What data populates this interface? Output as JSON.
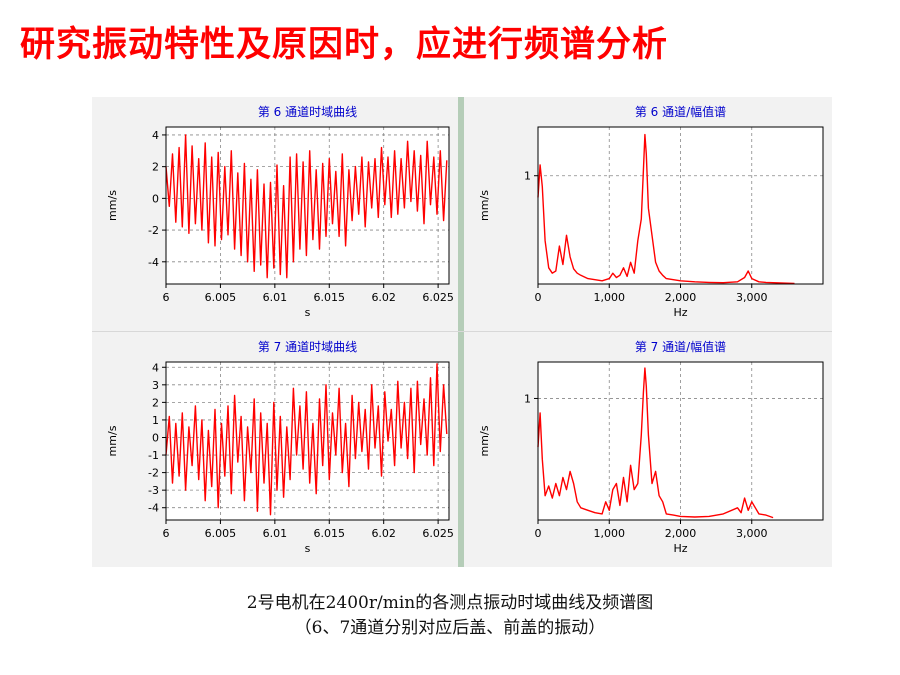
{
  "title": "研究振动特性及原因时，应进行频谱分析",
  "caption": {
    "line1": "2号电机在2400r/min的各测点振动时域曲线及频谱图",
    "line2": "（6、7通道分别对应后盖、前盖的振动）"
  },
  "colors": {
    "title": "#ff0000",
    "trace": "#ff0000",
    "panel_title": "#0000cc",
    "grid": "#888888"
  },
  "chart_data": [
    {
      "type": "line",
      "title": "第 6 通道时域曲线",
      "xlabel": "s",
      "ylabel": "mm/s",
      "xlim": [
        6,
        6.026
      ],
      "ylim": [
        -5.4,
        4.5
      ],
      "xticks": [
        6,
        6.005,
        6.01,
        6.015,
        6.02,
        6.025
      ],
      "xtick_labels": [
        "6",
        "6.005",
        "6.01",
        "6.015",
        "6.02",
        "6.025"
      ],
      "yticks": [
        -4,
        -2,
        0,
        2,
        4
      ],
      "ytick_labels": [
        "-4",
        "-2",
        "0",
        "2",
        "4"
      ],
      "grid": true,
      "series": [
        {
          "x": [
            6.0,
            6.0003,
            6.0006,
            6.0009,
            6.0012,
            6.0015,
            6.0018,
            6.0021,
            6.0024,
            6.0027,
            6.003,
            6.0033,
            6.0036,
            6.0039,
            6.0042,
            6.0045,
            6.0048,
            6.0051,
            6.0054,
            6.0057,
            6.006,
            6.0063,
            6.0066,
            6.0069,
            6.0072,
            6.0075,
            6.0078,
            6.0081,
            6.0084,
            6.0087,
            6.009,
            6.0093,
            6.0096,
            6.0099,
            6.0102,
            6.0105,
            6.0108,
            6.0111,
            6.0114,
            6.0117,
            6.012,
            6.0123,
            6.0126,
            6.0129,
            6.0132,
            6.0135,
            6.0138,
            6.0141,
            6.0144,
            6.0147,
            6.015,
            6.0153,
            6.0156,
            6.0159,
            6.0162,
            6.0165,
            6.0168,
            6.0171,
            6.0174,
            6.0177,
            6.018,
            6.0183,
            6.0186,
            6.0189,
            6.0192,
            6.0195,
            6.0198,
            6.0201,
            6.0204,
            6.0207,
            6.021,
            6.0213,
            6.0216,
            6.0219,
            6.0222,
            6.0225,
            6.0228,
            6.0231,
            6.0234,
            6.0237,
            6.024,
            6.0243,
            6.0246,
            6.0249,
            6.0252,
            6.0255,
            6.0258
          ],
          "y": [
            2.0,
            -0.5,
            2.8,
            -1.5,
            3.2,
            -1.8,
            4.0,
            -2.2,
            3.3,
            -1.6,
            2.5,
            -2.0,
            3.5,
            -2.8,
            2.6,
            -3.0,
            2.9,
            -2.6,
            2.0,
            -2.3,
            3.0,
            -3.2,
            1.6,
            -3.6,
            2.2,
            -4.0,
            1.2,
            -4.6,
            1.8,
            -4.2,
            0.9,
            -5.0,
            1.0,
            -4.4,
            2.1,
            -4.8,
            0.8,
            -5.0,
            2.6,
            -4.0,
            2.8,
            -3.2,
            2.3,
            -3.6,
            3.0,
            -2.6,
            1.8,
            -3.2,
            2.2,
            -2.4,
            2.5,
            -1.6,
            1.7,
            -2.4,
            2.8,
            -3.0,
            1.8,
            -1.4,
            2.0,
            -1.0,
            2.6,
            -1.8,
            2.3,
            -0.6,
            2.5,
            -1.2,
            3.2,
            -0.4,
            2.6,
            -1.2,
            3.0,
            -1.0,
            2.5,
            -0.6,
            3.6,
            -0.2,
            3.0,
            -0.8,
            2.7,
            -1.6,
            3.6,
            -0.4,
            2.6,
            -1.0,
            3.0,
            -1.4,
            2.4
          ]
        }
      ]
    },
    {
      "type": "line",
      "title": "第 6 通道/幅值谱",
      "xlabel": "Hz",
      "ylabel": "mm/s",
      "xlim": [
        0,
        4000
      ],
      "ylim": [
        0,
        1.45
      ],
      "xticks": [
        0,
        1000,
        2000,
        3000
      ],
      "xtick_labels": [
        "0",
        "1,000",
        "2,000",
        "3,000"
      ],
      "yticks": [
        1
      ],
      "ytick_labels": [
        "1"
      ],
      "grid": true,
      "series": [
        {
          "x": [
            0,
            30,
            60,
            100,
            150,
            200,
            250,
            300,
            350,
            400,
            450,
            500,
            550,
            600,
            700,
            800,
            900,
            1000,
            1050,
            1100,
            1150,
            1200,
            1250,
            1300,
            1350,
            1400,
            1450,
            1480,
            1500,
            1520,
            1550,
            1600,
            1650,
            1700,
            1750,
            1800,
            1900,
            2000,
            2200,
            2400,
            2600,
            2800,
            2900,
            2950,
            3000,
            3100,
            3200,
            3400,
            3600
          ],
          "y": [
            0.8,
            1.1,
            0.9,
            0.4,
            0.15,
            0.1,
            0.12,
            0.35,
            0.18,
            0.45,
            0.25,
            0.14,
            0.1,
            0.08,
            0.05,
            0.04,
            0.03,
            0.05,
            0.1,
            0.06,
            0.08,
            0.15,
            0.07,
            0.2,
            0.1,
            0.4,
            0.6,
            1.05,
            1.38,
            1.2,
            0.7,
            0.45,
            0.2,
            0.12,
            0.08,
            0.05,
            0.04,
            0.03,
            0.02,
            0.015,
            0.012,
            0.02,
            0.06,
            0.12,
            0.05,
            0.02,
            0.015,
            0.01,
            0.005
          ]
        }
      ]
    },
    {
      "type": "line",
      "title": "第 7 通道时域曲线",
      "xlabel": "s",
      "ylabel": "mm/s",
      "xlim": [
        6,
        6.026
      ],
      "ylim": [
        -4.7,
        4.3
      ],
      "xticks": [
        6,
        6.005,
        6.01,
        6.015,
        6.02,
        6.025
      ],
      "xtick_labels": [
        "6",
        "6.005",
        "6.01",
        "6.015",
        "6.02",
        "6.025"
      ],
      "yticks": [
        -4,
        -3,
        -2,
        -1,
        0,
        1,
        2,
        3,
        4
      ],
      "ytick_labels": [
        "-4",
        "-3",
        "-2",
        "-1",
        "0",
        "1",
        "2",
        "3",
        "4"
      ],
      "grid": true,
      "series": [
        {
          "x": [
            6.0,
            6.0003,
            6.0006,
            6.0009,
            6.0012,
            6.0015,
            6.0018,
            6.0021,
            6.0024,
            6.0027,
            6.003,
            6.0033,
            6.0036,
            6.0039,
            6.0042,
            6.0045,
            6.0048,
            6.0051,
            6.0054,
            6.0057,
            6.006,
            6.0063,
            6.0066,
            6.0069,
            6.0072,
            6.0075,
            6.0078,
            6.0081,
            6.0084,
            6.0087,
            6.009,
            6.0093,
            6.0096,
            6.0099,
            6.0102,
            6.0105,
            6.0108,
            6.0111,
            6.0114,
            6.0117,
            6.012,
            6.0123,
            6.0126,
            6.0129,
            6.0132,
            6.0135,
            6.0138,
            6.0141,
            6.0144,
            6.0147,
            6.015,
            6.0153,
            6.0156,
            6.0159,
            6.0162,
            6.0165,
            6.0168,
            6.0171,
            6.0174,
            6.0177,
            6.018,
            6.0183,
            6.0186,
            6.0189,
            6.0192,
            6.0195,
            6.0198,
            6.0201,
            6.0204,
            6.0207,
            6.021,
            6.0213,
            6.0216,
            6.0219,
            6.0222,
            6.0225,
            6.0228,
            6.0231,
            6.0234,
            6.0237,
            6.024,
            6.0243,
            6.0246,
            6.0249,
            6.0252,
            6.0255,
            6.0258
          ],
          "y": [
            -1.0,
            1.2,
            -2.6,
            0.8,
            -2.2,
            1.4,
            -3.0,
            0.6,
            -1.6,
            1.8,
            -2.4,
            1.0,
            -3.6,
            0.4,
            -2.8,
            1.6,
            -4.0,
            0.8,
            -2.2,
            1.8,
            -3.2,
            2.4,
            -1.4,
            1.2,
            -3.6,
            0.6,
            -2.0,
            2.2,
            -4.2,
            1.4,
            -2.6,
            0.8,
            -4.4,
            2.0,
            -3.0,
            1.2,
            -3.4,
            0.6,
            -2.4,
            2.8,
            -1.0,
            1.8,
            -1.8,
            2.6,
            -2.6,
            0.8,
            -3.2,
            2.2,
            -1.6,
            3.0,
            -2.4,
            1.4,
            -1.0,
            2.8,
            -2.0,
            0.8,
            -2.8,
            2.4,
            -1.2,
            2.0,
            -0.8,
            1.6,
            -1.8,
            3.0,
            -0.6,
            1.8,
            -2.2,
            2.6,
            -0.2,
            1.6,
            -1.6,
            3.2,
            -0.6,
            2.0,
            -1.2,
            2.8,
            -2.0,
            3.2,
            -0.4,
            2.2,
            -1.0,
            3.4,
            -1.6,
            4.2,
            -0.8,
            3.0,
            0.2
          ]
        }
      ]
    },
    {
      "type": "line",
      "title": "第 7 通道/幅值谱",
      "xlabel": "Hz",
      "ylabel": "mm/s",
      "xlim": [
        0,
        4000
      ],
      "ylim": [
        0,
        1.3
      ],
      "xticks": [
        0,
        1000,
        2000,
        3000
      ],
      "xtick_labels": [
        "0",
        "1,000",
        "2,000",
        "3,000"
      ],
      "yticks": [
        1
      ],
      "ytick_labels": [
        "1"
      ],
      "grid": true,
      "series": [
        {
          "x": [
            0,
            30,
            60,
            100,
            150,
            200,
            250,
            300,
            350,
            400,
            450,
            500,
            550,
            600,
            700,
            800,
            900,
            950,
            1000,
            1050,
            1100,
            1150,
            1200,
            1250,
            1300,
            1350,
            1400,
            1450,
            1480,
            1500,
            1520,
            1550,
            1600,
            1650,
            1700,
            1750,
            1800,
            1900,
            2000,
            2200,
            2400,
            2600,
            2800,
            2850,
            2900,
            2950,
            3000,
            3100,
            3200,
            3300
          ],
          "y": [
            0.6,
            0.88,
            0.5,
            0.2,
            0.28,
            0.18,
            0.3,
            0.2,
            0.35,
            0.25,
            0.4,
            0.3,
            0.15,
            0.1,
            0.08,
            0.06,
            0.05,
            0.15,
            0.08,
            0.25,
            0.3,
            0.12,
            0.35,
            0.15,
            0.45,
            0.25,
            0.3,
            0.7,
            1.05,
            1.25,
            1.1,
            0.7,
            0.3,
            0.4,
            0.2,
            0.15,
            0.05,
            0.04,
            0.03,
            0.025,
            0.03,
            0.05,
            0.1,
            0.06,
            0.18,
            0.08,
            0.15,
            0.05,
            0.04,
            0.02
          ]
        }
      ]
    }
  ]
}
